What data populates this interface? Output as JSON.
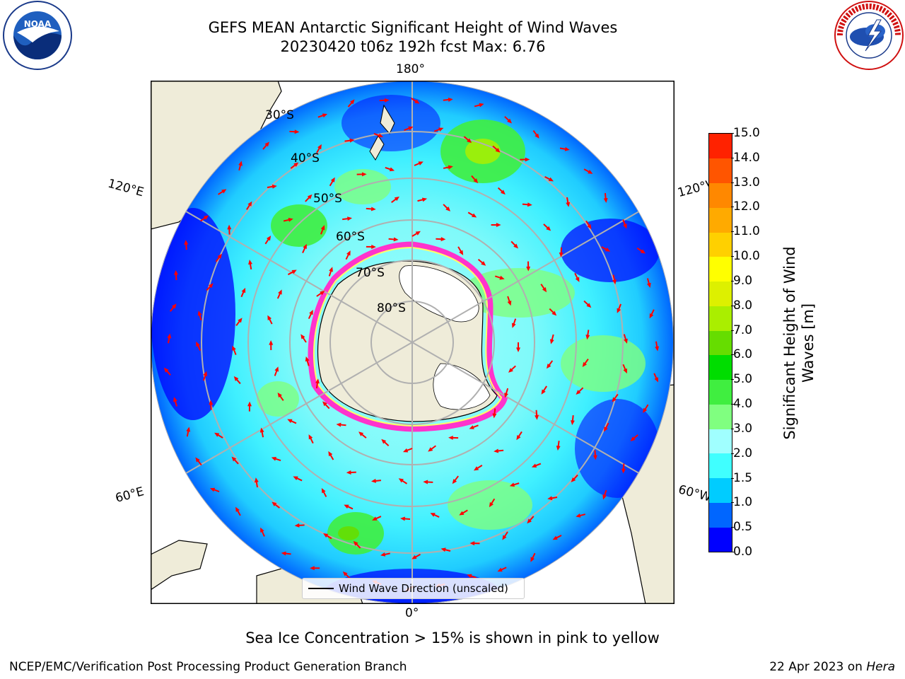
{
  "header": {
    "title_line1": "GEFS MEAN Antarctic Significant Height of Wind Waves",
    "title_line2": "20230420 t06z 192h fcst   Max: 6.76"
  },
  "logos": {
    "left": "NOAA",
    "right": "NATIONAL WEATHER SERVICE"
  },
  "map": {
    "projection": "south polar stereographic",
    "longitude_labels": {
      "top": "180°",
      "bottom": "0°",
      "upper_left": "120°E",
      "lower_left": "60°E",
      "upper_right": "120°W",
      "lower_right": "60°W"
    },
    "latitude_labels": [
      "30°S",
      "40°S",
      "50°S",
      "60°S",
      "70°S",
      "80°S"
    ],
    "legend_label": "Wind Wave Direction (unscaled)",
    "arrow_color": "#ff0000",
    "land_color": "#efecd9",
    "grid_color": "#b0b0b0"
  },
  "colorbar": {
    "label_line1": "Significant Height of Wind",
    "label_line2": "Waves [m]",
    "ticks": [
      "0.0",
      "0.5",
      "1.0",
      "1.5",
      "2.0",
      "3.0",
      "4.0",
      "5.0",
      "6.0",
      "7.0",
      "8.0",
      "9.0",
      "10.0",
      "11.0",
      "12.0",
      "13.0",
      "14.0",
      "15.0"
    ],
    "colors": [
      "#0000ff",
      "#0066ff",
      "#00ccff",
      "#40ffff",
      "#a0ffff",
      "#80ff80",
      "#40ee40",
      "#00dd00",
      "#66dd00",
      "#aaee00",
      "#ddf000",
      "#ffff00",
      "#ffd000",
      "#ffaa00",
      "#ff8800",
      "#ff5500",
      "#ff2200"
    ]
  },
  "sea_ice_note": "Sea Ice Concentration > 15% is shown in pink to yellow",
  "footer": {
    "left": "NCEP/EMC/Verification Post Processing Product Generation Branch",
    "right_prefix": "22 Apr 2023 on ",
    "right_machine": "Hera"
  }
}
